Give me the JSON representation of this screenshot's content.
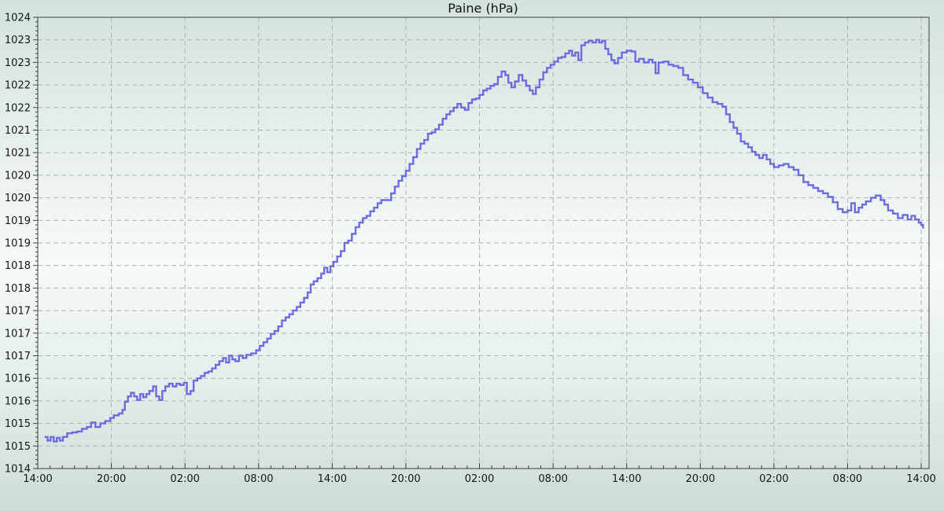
{
  "title": "Paine (hPa)",
  "colors": {
    "line": "#6c6cdf",
    "grid": "#aeb4b1",
    "axis": "#3f3f3f",
    "text": "#141414",
    "bg_top": "#d3e2de",
    "bg_mid": "#f5faf8",
    "bg_bottom": "#cddcd8"
  },
  "chart_data": {
    "type": "line",
    "title": "Paine (hPa)",
    "style": "stepped line (barograph trace), dashed grid, no legend",
    "xlabel": "",
    "ylabel": "",
    "x_unit": "hours elapsed since first x tick (14:00 day 1); ticks every 6 h, minor ticks hourly",
    "xlim_hours": [
      0,
      72.7
    ],
    "ylim": [
      1014,
      1024
    ],
    "x_tick_hours": [
      0,
      6,
      12,
      18,
      24,
      30,
      36,
      42,
      48,
      54,
      60,
      66,
      72
    ],
    "x_tick_labels": [
      "14:00",
      "20:00",
      "02:00",
      "08:00",
      "14:00",
      "20:00",
      "02:00",
      "08:00",
      "14:00",
      "20:00",
      "02:00",
      "08:00",
      "14:00"
    ],
    "y_tick_step": 0.5,
    "y_minor_tick_step": 0.1,
    "y_tick_values": [
      1014,
      1014.5,
      1015,
      1015.5,
      1016,
      1016.5,
      1017,
      1017.5,
      1018,
      1018.5,
      1019,
      1019.5,
      1020,
      1020.5,
      1021,
      1021.5,
      1022,
      1022.5,
      1023,
      1023.5,
      1024
    ],
    "y_tick_labels": [
      "1014",
      "1015",
      "1015",
      "1016",
      "1016",
      "1017",
      "1017",
      "1017",
      "1018",
      "1018",
      "1019",
      "1019",
      "1020",
      "1020",
      "1021",
      "1021",
      "1022",
      "1022",
      "1023",
      "1023",
      "1024"
    ],
    "grid": "on (dashed, at 6 h verticals and 0.5 hPa horizontals)",
    "legend_position": "none",
    "series": [
      {
        "name": "Paine pressure (hPa)",
        "points": [
          [
            0.55,
            1014.7
          ],
          [
            0.8,
            1014.62
          ],
          [
            1.05,
            1014.7
          ],
          [
            1.3,
            1014.6
          ],
          [
            1.55,
            1014.68
          ],
          [
            1.8,
            1014.62
          ],
          [
            2.05,
            1014.7
          ],
          [
            2.4,
            1014.78
          ],
          [
            2.8,
            1014.8
          ],
          [
            3.2,
            1014.82
          ],
          [
            3.6,
            1014.88
          ],
          [
            4.0,
            1014.92
          ],
          [
            4.35,
            1015.02
          ],
          [
            4.7,
            1014.92
          ],
          [
            5.1,
            1015.0
          ],
          [
            5.5,
            1015.05
          ],
          [
            5.9,
            1015.12
          ],
          [
            6.2,
            1015.18
          ],
          [
            6.6,
            1015.22
          ],
          [
            6.9,
            1015.3
          ],
          [
            7.1,
            1015.48
          ],
          [
            7.35,
            1015.6
          ],
          [
            7.6,
            1015.68
          ],
          [
            7.85,
            1015.6
          ],
          [
            8.1,
            1015.52
          ],
          [
            8.35,
            1015.65
          ],
          [
            8.6,
            1015.58
          ],
          [
            8.85,
            1015.65
          ],
          [
            9.1,
            1015.72
          ],
          [
            9.4,
            1015.82
          ],
          [
            9.65,
            1015.6
          ],
          [
            9.9,
            1015.52
          ],
          [
            10.15,
            1015.72
          ],
          [
            10.4,
            1015.82
          ],
          [
            10.7,
            1015.88
          ],
          [
            11.0,
            1015.82
          ],
          [
            11.3,
            1015.88
          ],
          [
            11.6,
            1015.85
          ],
          [
            11.9,
            1015.9
          ],
          [
            12.15,
            1015.65
          ],
          [
            12.45,
            1015.72
          ],
          [
            12.7,
            1015.95
          ],
          [
            13.0,
            1016.0
          ],
          [
            13.3,
            1016.05
          ],
          [
            13.6,
            1016.12
          ],
          [
            13.9,
            1016.15
          ],
          [
            14.2,
            1016.22
          ],
          [
            14.5,
            1016.3
          ],
          [
            14.8,
            1016.38
          ],
          [
            15.1,
            1016.45
          ],
          [
            15.35,
            1016.35
          ],
          [
            15.6,
            1016.5
          ],
          [
            15.85,
            1016.42
          ],
          [
            16.1,
            1016.38
          ],
          [
            16.4,
            1016.5
          ],
          [
            16.7,
            1016.45
          ],
          [
            17.0,
            1016.52
          ],
          [
            17.4,
            1016.55
          ],
          [
            17.8,
            1016.62
          ],
          [
            18.1,
            1016.72
          ],
          [
            18.4,
            1016.8
          ],
          [
            18.7,
            1016.88
          ],
          [
            19.0,
            1016.98
          ],
          [
            19.3,
            1017.05
          ],
          [
            19.6,
            1017.15
          ],
          [
            19.9,
            1017.28
          ],
          [
            20.2,
            1017.35
          ],
          [
            20.5,
            1017.42
          ],
          [
            20.8,
            1017.5
          ],
          [
            21.1,
            1017.58
          ],
          [
            21.4,
            1017.68
          ],
          [
            21.7,
            1017.78
          ],
          [
            22.0,
            1017.9
          ],
          [
            22.25,
            1018.08
          ],
          [
            22.5,
            1018.15
          ],
          [
            22.8,
            1018.22
          ],
          [
            23.1,
            1018.32
          ],
          [
            23.35,
            1018.45
          ],
          [
            23.6,
            1018.35
          ],
          [
            23.85,
            1018.48
          ],
          [
            24.1,
            1018.58
          ],
          [
            24.4,
            1018.7
          ],
          [
            24.7,
            1018.82
          ],
          [
            25.0,
            1019.0
          ],
          [
            25.3,
            1019.05
          ],
          [
            25.6,
            1019.2
          ],
          [
            25.9,
            1019.35
          ],
          [
            26.2,
            1019.45
          ],
          [
            26.5,
            1019.55
          ],
          [
            26.8,
            1019.6
          ],
          [
            27.1,
            1019.7
          ],
          [
            27.4,
            1019.78
          ],
          [
            27.7,
            1019.88
          ],
          [
            28.0,
            1019.95
          ],
          [
            28.4,
            1019.95
          ],
          [
            28.8,
            1020.1
          ],
          [
            29.1,
            1020.25
          ],
          [
            29.4,
            1020.38
          ],
          [
            29.7,
            1020.48
          ],
          [
            30.0,
            1020.6
          ],
          [
            30.3,
            1020.75
          ],
          [
            30.6,
            1020.9
          ],
          [
            30.9,
            1021.08
          ],
          [
            31.2,
            1021.2
          ],
          [
            31.5,
            1021.28
          ],
          [
            31.8,
            1021.42
          ],
          [
            32.1,
            1021.45
          ],
          [
            32.4,
            1021.52
          ],
          [
            32.7,
            1021.62
          ],
          [
            33.0,
            1021.75
          ],
          [
            33.3,
            1021.85
          ],
          [
            33.6,
            1021.92
          ],
          [
            33.9,
            1022.0
          ],
          [
            34.2,
            1022.08
          ],
          [
            34.5,
            1022.0
          ],
          [
            34.8,
            1021.95
          ],
          [
            35.1,
            1022.1
          ],
          [
            35.4,
            1022.18
          ],
          [
            35.7,
            1022.2
          ],
          [
            36.0,
            1022.28
          ],
          [
            36.3,
            1022.38
          ],
          [
            36.6,
            1022.42
          ],
          [
            36.9,
            1022.48
          ],
          [
            37.2,
            1022.52
          ],
          [
            37.5,
            1022.68
          ],
          [
            37.8,
            1022.8
          ],
          [
            38.1,
            1022.72
          ],
          [
            38.35,
            1022.55
          ],
          [
            38.6,
            1022.45
          ],
          [
            38.9,
            1022.58
          ],
          [
            39.2,
            1022.72
          ],
          [
            39.5,
            1022.6
          ],
          [
            39.8,
            1022.48
          ],
          [
            40.1,
            1022.38
          ],
          [
            40.35,
            1022.3
          ],
          [
            40.6,
            1022.45
          ],
          [
            40.9,
            1022.62
          ],
          [
            41.2,
            1022.78
          ],
          [
            41.5,
            1022.88
          ],
          [
            41.8,
            1022.95
          ],
          [
            42.1,
            1023.02
          ],
          [
            42.4,
            1023.1
          ],
          [
            42.7,
            1023.12
          ],
          [
            43.0,
            1023.2
          ],
          [
            43.3,
            1023.26
          ],
          [
            43.55,
            1023.15
          ],
          [
            43.8,
            1023.22
          ],
          [
            44.05,
            1023.05
          ],
          [
            44.3,
            1023.38
          ],
          [
            44.6,
            1023.44
          ],
          [
            44.9,
            1023.48
          ],
          [
            45.2,
            1023.44
          ],
          [
            45.5,
            1023.5
          ],
          [
            45.75,
            1023.44
          ],
          [
            46.0,
            1023.48
          ],
          [
            46.25,
            1023.3
          ],
          [
            46.5,
            1023.18
          ],
          [
            46.75,
            1023.05
          ],
          [
            47.0,
            1022.98
          ],
          [
            47.3,
            1023.1
          ],
          [
            47.6,
            1023.22
          ],
          [
            48.0,
            1023.26
          ],
          [
            48.4,
            1023.24
          ],
          [
            48.7,
            1023.02
          ],
          [
            49.0,
            1023.08
          ],
          [
            49.4,
            1023.0
          ],
          [
            49.8,
            1023.06
          ],
          [
            50.1,
            1023.0
          ],
          [
            50.35,
            1022.76
          ],
          [
            50.6,
            1023.0
          ],
          [
            51.0,
            1023.02
          ],
          [
            51.4,
            1022.95
          ],
          [
            51.8,
            1022.92
          ],
          [
            52.2,
            1022.88
          ],
          [
            52.6,
            1022.72
          ],
          [
            53.0,
            1022.62
          ],
          [
            53.4,
            1022.55
          ],
          [
            53.8,
            1022.45
          ],
          [
            54.2,
            1022.32
          ],
          [
            54.6,
            1022.22
          ],
          [
            55.0,
            1022.12
          ],
          [
            55.4,
            1022.08
          ],
          [
            55.8,
            1022.02
          ],
          [
            56.1,
            1021.85
          ],
          [
            56.4,
            1021.68
          ],
          [
            56.7,
            1021.55
          ],
          [
            57.0,
            1021.42
          ],
          [
            57.3,
            1021.25
          ],
          [
            57.6,
            1021.2
          ],
          [
            57.9,
            1021.12
          ],
          [
            58.2,
            1021.02
          ],
          [
            58.5,
            1020.95
          ],
          [
            58.8,
            1020.88
          ],
          [
            59.1,
            1020.95
          ],
          [
            59.4,
            1020.85
          ],
          [
            59.7,
            1020.75
          ],
          [
            60.0,
            1020.68
          ],
          [
            60.4,
            1020.72
          ],
          [
            60.8,
            1020.75
          ],
          [
            61.2,
            1020.68
          ],
          [
            61.6,
            1020.62
          ],
          [
            62.0,
            1020.5
          ],
          [
            62.4,
            1020.35
          ],
          [
            62.8,
            1020.28
          ],
          [
            63.2,
            1020.22
          ],
          [
            63.6,
            1020.15
          ],
          [
            64.0,
            1020.1
          ],
          [
            64.4,
            1020.02
          ],
          [
            64.8,
            1019.9
          ],
          [
            65.2,
            1019.75
          ],
          [
            65.6,
            1019.68
          ],
          [
            66.0,
            1019.72
          ],
          [
            66.3,
            1019.88
          ],
          [
            66.6,
            1019.68
          ],
          [
            66.9,
            1019.78
          ],
          [
            67.2,
            1019.85
          ],
          [
            67.5,
            1019.92
          ],
          [
            67.9,
            1020.0
          ],
          [
            68.3,
            1020.05
          ],
          [
            68.7,
            1019.95
          ],
          [
            69.0,
            1019.85
          ],
          [
            69.3,
            1019.72
          ],
          [
            69.7,
            1019.65
          ],
          [
            70.1,
            1019.55
          ],
          [
            70.5,
            1019.62
          ],
          [
            70.9,
            1019.52
          ],
          [
            71.2,
            1019.6
          ],
          [
            71.5,
            1019.52
          ],
          [
            71.8,
            1019.45
          ],
          [
            72.0,
            1019.4
          ],
          [
            72.15,
            1019.32
          ]
        ]
      }
    ]
  }
}
